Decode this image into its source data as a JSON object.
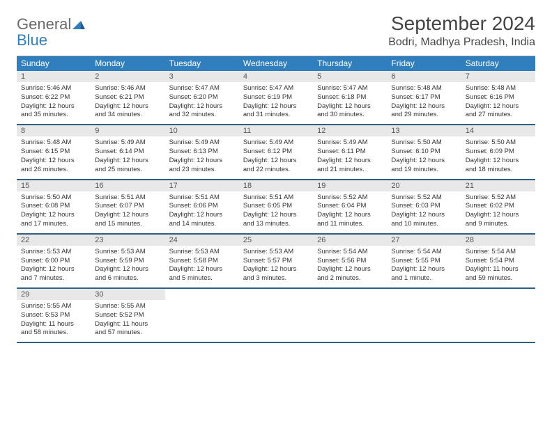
{
  "brand": {
    "name_a": "General",
    "name_b": "Blue"
  },
  "title": {
    "month": "September 2024",
    "location": "Bodri, Madhya Pradesh, India"
  },
  "headers": [
    "Sunday",
    "Monday",
    "Tuesday",
    "Wednesday",
    "Thursday",
    "Friday",
    "Saturday"
  ],
  "colors": {
    "header_bg": "#2f7fbf",
    "header_text": "#ffffff",
    "daynum_bg": "#e8e8e8",
    "week_divider": "#2f5f80",
    "body_text": "#333333",
    "logo_gray": "#6a6a6a",
    "logo_blue": "#2f7fbf",
    "page_bg": "#ffffff"
  },
  "layout": {
    "cols": 7,
    "cell_font_size_pt": 7,
    "header_font_size_pt": 9
  },
  "weeks": [
    [
      {
        "n": "1",
        "rise": "5:46 AM",
        "set": "6:22 PM",
        "dl": "12 hours and 35 minutes."
      },
      {
        "n": "2",
        "rise": "5:46 AM",
        "set": "6:21 PM",
        "dl": "12 hours and 34 minutes."
      },
      {
        "n": "3",
        "rise": "5:47 AM",
        "set": "6:20 PM",
        "dl": "12 hours and 32 minutes."
      },
      {
        "n": "4",
        "rise": "5:47 AM",
        "set": "6:19 PM",
        "dl": "12 hours and 31 minutes."
      },
      {
        "n": "5",
        "rise": "5:47 AM",
        "set": "6:18 PM",
        "dl": "12 hours and 30 minutes."
      },
      {
        "n": "6",
        "rise": "5:48 AM",
        "set": "6:17 PM",
        "dl": "12 hours and 29 minutes."
      },
      {
        "n": "7",
        "rise": "5:48 AM",
        "set": "6:16 PM",
        "dl": "12 hours and 27 minutes."
      }
    ],
    [
      {
        "n": "8",
        "rise": "5:48 AM",
        "set": "6:15 PM",
        "dl": "12 hours and 26 minutes."
      },
      {
        "n": "9",
        "rise": "5:49 AM",
        "set": "6:14 PM",
        "dl": "12 hours and 25 minutes."
      },
      {
        "n": "10",
        "rise": "5:49 AM",
        "set": "6:13 PM",
        "dl": "12 hours and 23 minutes."
      },
      {
        "n": "11",
        "rise": "5:49 AM",
        "set": "6:12 PM",
        "dl": "12 hours and 22 minutes."
      },
      {
        "n": "12",
        "rise": "5:49 AM",
        "set": "6:11 PM",
        "dl": "12 hours and 21 minutes."
      },
      {
        "n": "13",
        "rise": "5:50 AM",
        "set": "6:10 PM",
        "dl": "12 hours and 19 minutes."
      },
      {
        "n": "14",
        "rise": "5:50 AM",
        "set": "6:09 PM",
        "dl": "12 hours and 18 minutes."
      }
    ],
    [
      {
        "n": "15",
        "rise": "5:50 AM",
        "set": "6:08 PM",
        "dl": "12 hours and 17 minutes."
      },
      {
        "n": "16",
        "rise": "5:51 AM",
        "set": "6:07 PM",
        "dl": "12 hours and 15 minutes."
      },
      {
        "n": "17",
        "rise": "5:51 AM",
        "set": "6:06 PM",
        "dl": "12 hours and 14 minutes."
      },
      {
        "n": "18",
        "rise": "5:51 AM",
        "set": "6:05 PM",
        "dl": "12 hours and 13 minutes."
      },
      {
        "n": "19",
        "rise": "5:52 AM",
        "set": "6:04 PM",
        "dl": "12 hours and 11 minutes."
      },
      {
        "n": "20",
        "rise": "5:52 AM",
        "set": "6:03 PM",
        "dl": "12 hours and 10 minutes."
      },
      {
        "n": "21",
        "rise": "5:52 AM",
        "set": "6:02 PM",
        "dl": "12 hours and 9 minutes."
      }
    ],
    [
      {
        "n": "22",
        "rise": "5:53 AM",
        "set": "6:00 PM",
        "dl": "12 hours and 7 minutes."
      },
      {
        "n": "23",
        "rise": "5:53 AM",
        "set": "5:59 PM",
        "dl": "12 hours and 6 minutes."
      },
      {
        "n": "24",
        "rise": "5:53 AM",
        "set": "5:58 PM",
        "dl": "12 hours and 5 minutes."
      },
      {
        "n": "25",
        "rise": "5:53 AM",
        "set": "5:57 PM",
        "dl": "12 hours and 3 minutes."
      },
      {
        "n": "26",
        "rise": "5:54 AM",
        "set": "5:56 PM",
        "dl": "12 hours and 2 minutes."
      },
      {
        "n": "27",
        "rise": "5:54 AM",
        "set": "5:55 PM",
        "dl": "12 hours and 1 minute."
      },
      {
        "n": "28",
        "rise": "5:54 AM",
        "set": "5:54 PM",
        "dl": "11 hours and 59 minutes."
      }
    ],
    [
      {
        "n": "29",
        "rise": "5:55 AM",
        "set": "5:53 PM",
        "dl": "11 hours and 58 minutes."
      },
      {
        "n": "30",
        "rise": "5:55 AM",
        "set": "5:52 PM",
        "dl": "11 hours and 57 minutes."
      },
      null,
      null,
      null,
      null,
      null
    ]
  ],
  "labels": {
    "sunrise": "Sunrise: ",
    "sunset": "Sunset: ",
    "daylight": "Daylight: "
  }
}
